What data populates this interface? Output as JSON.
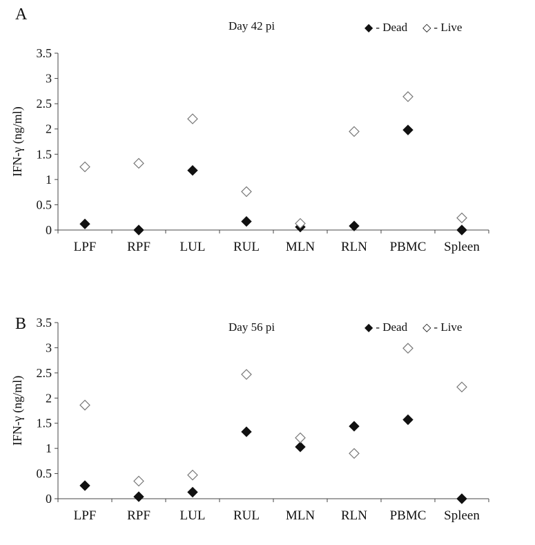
{
  "chart_data": [
    {
      "type": "scatter",
      "panel_label": "A",
      "title": "Day 42 pi",
      "ylabel": "IFN-γ (ng/ml)",
      "ylim": [
        0,
        3.5
      ],
      "yticks": [
        "0",
        "0.5",
        "1",
        "1.5",
        "2",
        "2.5",
        "3",
        "3.5"
      ],
      "yticks_values": [
        0,
        0.5,
        1,
        1.5,
        2,
        2.5,
        3,
        3.5
      ],
      "categories": [
        "LPF",
        "RPF",
        "LUL",
        "RUL",
        "MLN",
        "RLN",
        "PBMC",
        "Spleen"
      ],
      "legend_position": "top-right",
      "series": [
        {
          "name": "- Dead",
          "marker": "filled-diamond",
          "values": [
            0.12,
            0.0,
            1.18,
            0.17,
            0.06,
            0.08,
            1.98,
            0.0
          ]
        },
        {
          "name": "- Live",
          "marker": "open-diamond",
          "values": [
            1.25,
            1.32,
            2.2,
            0.76,
            0.13,
            1.95,
            2.64,
            0.24
          ]
        }
      ]
    },
    {
      "type": "scatter",
      "panel_label": "B",
      "title": "Day 56 pi",
      "ylabel": "IFN-γ (ng/ml)",
      "ylim": [
        0,
        3.5
      ],
      "yticks": [
        "0",
        "0.5",
        "1",
        "1.5",
        "2",
        "2.5",
        "3",
        "3.5"
      ],
      "yticks_values": [
        0,
        0.5,
        1,
        1.5,
        2,
        2.5,
        3,
        3.5
      ],
      "categories": [
        "LPF",
        "RPF",
        "LUL",
        "RUL",
        "MLN",
        "RLN",
        "PBMC",
        "Spleen"
      ],
      "legend_position": "top-right",
      "series": [
        {
          "name": "- Dead",
          "marker": "filled-diamond",
          "values": [
            0.26,
            0.04,
            0.13,
            1.33,
            1.03,
            1.44,
            1.57,
            0.0
          ]
        },
        {
          "name": "- Live",
          "marker": "open-diamond",
          "values": [
            1.86,
            0.35,
            0.47,
            2.47,
            1.21,
            0.9,
            2.99,
            2.22
          ]
        }
      ]
    }
  ]
}
